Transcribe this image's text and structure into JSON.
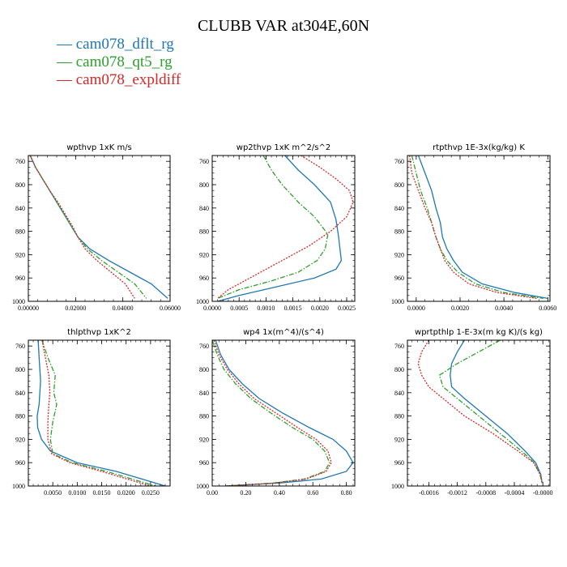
{
  "figure": {
    "title": "CLUBB VAR at304E,60N",
    "legend": [
      {
        "label": "cam078_dflt_rg",
        "color": "#1f77b4",
        "dash": "solid"
      },
      {
        "label": "cam078_qt5_rg",
        "color": "#2ca02c",
        "dash": "dashdot"
      },
      {
        "label": "cam078_expldiff",
        "color": "#d62728",
        "dash": "dotted"
      }
    ]
  },
  "chart_data": [
    {
      "type": "line",
      "title": "wpthvp  1xK m/s",
      "xlabel": "",
      "ylabel": "",
      "xlim": [
        0,
        0.06
      ],
      "ylim": [
        1000,
        750
      ],
      "xticks": [
        0,
        0.02,
        0.04,
        0.06
      ],
      "xtick_labels": [
        "0.00000",
        "0.02000",
        "0.04000",
        "0.06000"
      ],
      "yticks": [
        760,
        800,
        840,
        880,
        920,
        960,
        1000
      ],
      "series": [
        {
          "name": "cam078_dflt_rg",
          "x": [
            0.0008,
            0.003,
            0.006,
            0.009,
            0.012,
            0.015,
            0.018,
            0.021,
            0.026,
            0.034,
            0.043,
            0.052,
            0.059
          ],
          "y": [
            750,
            770,
            790,
            810,
            830,
            850,
            870,
            890,
            910,
            930,
            950,
            970,
            995
          ]
        },
        {
          "name": "cam078_qt5_rg",
          "x": [
            0.0008,
            0.003,
            0.006,
            0.009,
            0.012,
            0.015,
            0.018,
            0.021,
            0.025,
            0.031,
            0.038,
            0.045,
            0.05
          ],
          "y": [
            750,
            770,
            790,
            810,
            830,
            850,
            870,
            890,
            910,
            930,
            950,
            970,
            995
          ]
        },
        {
          "name": "cam078_expldiff",
          "x": [
            0.0008,
            0.003,
            0.006,
            0.009,
            0.0125,
            0.0155,
            0.0185,
            0.021,
            0.024,
            0.029,
            0.035,
            0.041,
            0.045
          ],
          "y": [
            750,
            770,
            790,
            810,
            830,
            850,
            870,
            890,
            910,
            930,
            950,
            970,
            995
          ]
        }
      ]
    },
    {
      "type": "line",
      "title": "wp2thvp  1xK m^2/s^2",
      "xlabel": "",
      "ylabel": "",
      "xlim": [
        0,
        0.00265
      ],
      "ylim": [
        1000,
        750
      ],
      "xticks": [
        0,
        0.0005,
        0.001,
        0.0015,
        0.002,
        0.0025
      ],
      "xtick_labels": [
        "0.0000",
        "0.0005",
        "0.0010",
        "0.0015",
        "0.0020",
        "0.0025"
      ],
      "yticks": [
        760,
        800,
        840,
        880,
        920,
        960,
        1000
      ],
      "series": [
        {
          "name": "cam078_dflt_rg",
          "x": [
            0.00135,
            0.0016,
            0.0019,
            0.0022,
            0.0023,
            0.00235,
            0.00238,
            0.0024,
            0.0023,
            0.0019,
            0.0012,
            0.0005,
            0.0001
          ],
          "y": [
            750,
            775,
            800,
            830,
            860,
            890,
            915,
            930,
            945,
            960,
            975,
            990,
            1000
          ]
        },
        {
          "name": "cam078_qt5_rg",
          "x": [
            0.00095,
            0.0011,
            0.0013,
            0.0016,
            0.0019,
            0.00215,
            0.0021,
            0.00195,
            0.0016,
            0.0011,
            0.0005,
            0.0001
          ],
          "y": [
            750,
            775,
            800,
            830,
            855,
            885,
            910,
            930,
            950,
            965,
            980,
            995
          ]
        },
        {
          "name": "cam078_expldiff",
          "x": [
            0.00165,
            0.002,
            0.0023,
            0.00255,
            0.00262,
            0.0025,
            0.0022,
            0.0018,
            0.0013,
            0.0008,
            0.0003,
            0.0001
          ],
          "y": [
            750,
            770,
            790,
            810,
            830,
            855,
            880,
            905,
            930,
            955,
            980,
            995
          ]
        }
      ]
    },
    {
      "type": "line",
      "title": "rtpthvp  1E-3x(kg/kg) K",
      "xlabel": "",
      "ylabel": "",
      "xlim": [
        -0.0004,
        0.0061
      ],
      "ylim": [
        1000,
        750
      ],
      "xticks": [
        0,
        0.002,
        0.004,
        0.006
      ],
      "xtick_labels": [
        "0.0000",
        "0.0020",
        "0.0040",
        "0.0060"
      ],
      "yticks": [
        760,
        800,
        840,
        880,
        920,
        960,
        1000
      ],
      "series": [
        {
          "name": "cam078_dflt_rg",
          "x": [
            0.0001,
            0.0004,
            0.0007,
            0.0009,
            0.0011,
            0.0012,
            0.0014,
            0.0017,
            0.0021,
            0.003,
            0.0045,
            0.006
          ],
          "y": [
            750,
            780,
            810,
            840,
            865,
            890,
            910,
            930,
            950,
            970,
            985,
            995
          ]
        },
        {
          "name": "cam078_qt5_rg",
          "x": [
            -0.0002,
            0.0,
            0.0002,
            0.0005,
            0.0007,
            0.0009,
            0.0011,
            0.0014,
            0.0019,
            0.0027,
            0.004,
            0.0058
          ],
          "y": [
            750,
            780,
            810,
            840,
            865,
            890,
            910,
            930,
            950,
            970,
            985,
            995
          ]
        },
        {
          "name": "cam078_expldiff",
          "x": [
            -0.0003,
            -0.0002,
            0.0001,
            0.0004,
            0.0007,
            0.0009,
            0.0011,
            0.0013,
            0.0017,
            0.0024,
            0.0037,
            0.0055
          ],
          "y": [
            750,
            780,
            810,
            840,
            865,
            890,
            910,
            930,
            950,
            970,
            985,
            995
          ]
        }
      ]
    },
    {
      "type": "line",
      "title": "thlpthvp  1xK^2",
      "xlabel": "",
      "ylabel": "",
      "xlim": [
        0,
        0.029
      ],
      "ylim": [
        1000,
        750
      ],
      "xticks": [
        0.005,
        0.01,
        0.015,
        0.02,
        0.025
      ],
      "xtick_labels": [
        "0.0050",
        "0.0100",
        "0.0150",
        "0.0200",
        "0.0250"
      ],
      "yticks": [
        760,
        800,
        840,
        880,
        920,
        960,
        1000
      ],
      "series": [
        {
          "name": "cam078_dflt_rg",
          "x": [
            0.002,
            0.0022,
            0.0025,
            0.0022,
            0.0018,
            0.0019,
            0.0027,
            0.0045,
            0.01,
            0.018,
            0.024,
            0.028
          ],
          "y": [
            750,
            780,
            820,
            860,
            880,
            900,
            920,
            940,
            960,
            975,
            990,
            1000
          ]
        },
        {
          "name": "cam078_qt5_rg",
          "x": [
            0.0028,
            0.004,
            0.0055,
            0.0052,
            0.0058,
            0.005,
            0.0045,
            0.005,
            0.009,
            0.016,
            0.022,
            0.026
          ],
          "y": [
            750,
            780,
            810,
            840,
            860,
            890,
            920,
            945,
            960,
            975,
            990,
            1000
          ]
        },
        {
          "name": "cam078_expldiff",
          "x": [
            0.0028,
            0.0035,
            0.0042,
            0.0044,
            0.0042,
            0.004,
            0.004,
            0.0048,
            0.0085,
            0.015,
            0.021,
            0.025
          ],
          "y": [
            750,
            780,
            810,
            840,
            860,
            890,
            920,
            945,
            960,
            975,
            990,
            1000
          ]
        }
      ]
    },
    {
      "type": "line",
      "title": "wp4  1x(m^4)/(s^4)",
      "xlabel": "",
      "ylabel": "",
      "xlim": [
        0,
        0.85
      ],
      "ylim": [
        1000,
        750
      ],
      "xticks": [
        0,
        0.2,
        0.4,
        0.6,
        0.8
      ],
      "xtick_labels": [
        "0.00",
        "0.20",
        "0.40",
        "0.60",
        "0.80"
      ],
      "yticks": [
        760,
        800,
        840,
        880,
        920,
        960,
        1000
      ],
      "series": [
        {
          "name": "cam078_dflt_rg",
          "x": [
            0.02,
            0.05,
            0.1,
            0.18,
            0.28,
            0.42,
            0.58,
            0.72,
            0.8,
            0.84,
            0.8,
            0.65,
            0.4,
            0.2,
            0.08
          ],
          "y": [
            750,
            775,
            800,
            825,
            850,
            875,
            900,
            920,
            940,
            960,
            975,
            988,
            995,
            998,
            1000
          ]
        },
        {
          "name": "cam078_qt5_rg",
          "x": [
            0.0,
            0.03,
            0.07,
            0.14,
            0.23,
            0.35,
            0.48,
            0.6,
            0.67,
            0.7,
            0.67,
            0.55,
            0.36,
            0.18,
            0.08
          ],
          "y": [
            750,
            775,
            800,
            825,
            850,
            875,
            900,
            920,
            940,
            960,
            975,
            988,
            995,
            998,
            1000
          ]
        },
        {
          "name": "cam078_expldiff",
          "x": [
            0.01,
            0.04,
            0.09,
            0.16,
            0.25,
            0.38,
            0.51,
            0.62,
            0.69,
            0.71,
            0.68,
            0.56,
            0.37,
            0.19,
            0.08
          ],
          "y": [
            750,
            775,
            800,
            825,
            850,
            875,
            900,
            920,
            940,
            960,
            975,
            988,
            995,
            998,
            1000
          ]
        }
      ]
    },
    {
      "type": "line",
      "title": "wprtpthlp  1-E-3x(m kg K)/(s kg)",
      "xlabel": "",
      "ylabel": "",
      "xlim": [
        -0.0019,
        0.0001
      ],
      "ylim": [
        1000,
        750
      ],
      "xticks": [
        -0.0016,
        -0.0012,
        -0.0008,
        -0.0004,
        0
      ],
      "xtick_labels": [
        "-0.0016",
        "-0.0012",
        "-0.0008",
        "-0.0004",
        "-0.0000"
      ],
      "yticks": [
        760,
        800,
        840,
        880,
        920,
        960,
        1000
      ],
      "series": [
        {
          "name": "cam078_dflt_rg",
          "x": [
            -0.0011,
            -0.0012,
            -0.00128,
            -0.0013,
            -0.00128,
            -0.0011,
            -0.0008,
            -0.0005,
            -0.00025,
            -0.0001,
            -3e-05,
            -1e-05
          ],
          "y": [
            750,
            770,
            790,
            810,
            830,
            850,
            880,
            910,
            940,
            960,
            980,
            995
          ]
        },
        {
          "name": "cam078_qt5_rg",
          "x": [
            -0.0006,
            -0.0009,
            -0.0012,
            -0.00145,
            -0.0014,
            -0.0012,
            -0.0009,
            -0.0006,
            -0.0003,
            -0.00012,
            -4e-05,
            -1e-05
          ],
          "y": [
            750,
            770,
            790,
            810,
            830,
            850,
            880,
            910,
            940,
            960,
            980,
            995
          ]
        },
        {
          "name": "cam078_expldiff",
          "x": [
            -0.0016,
            -0.0017,
            -0.00175,
            -0.0017,
            -0.0016,
            -0.0014,
            -0.0011,
            -0.0007,
            -0.00035,
            -0.00013,
            -4e-05,
            -1e-05
          ],
          "y": [
            750,
            770,
            790,
            810,
            830,
            850,
            880,
            910,
            940,
            960,
            980,
            995
          ]
        }
      ]
    }
  ]
}
